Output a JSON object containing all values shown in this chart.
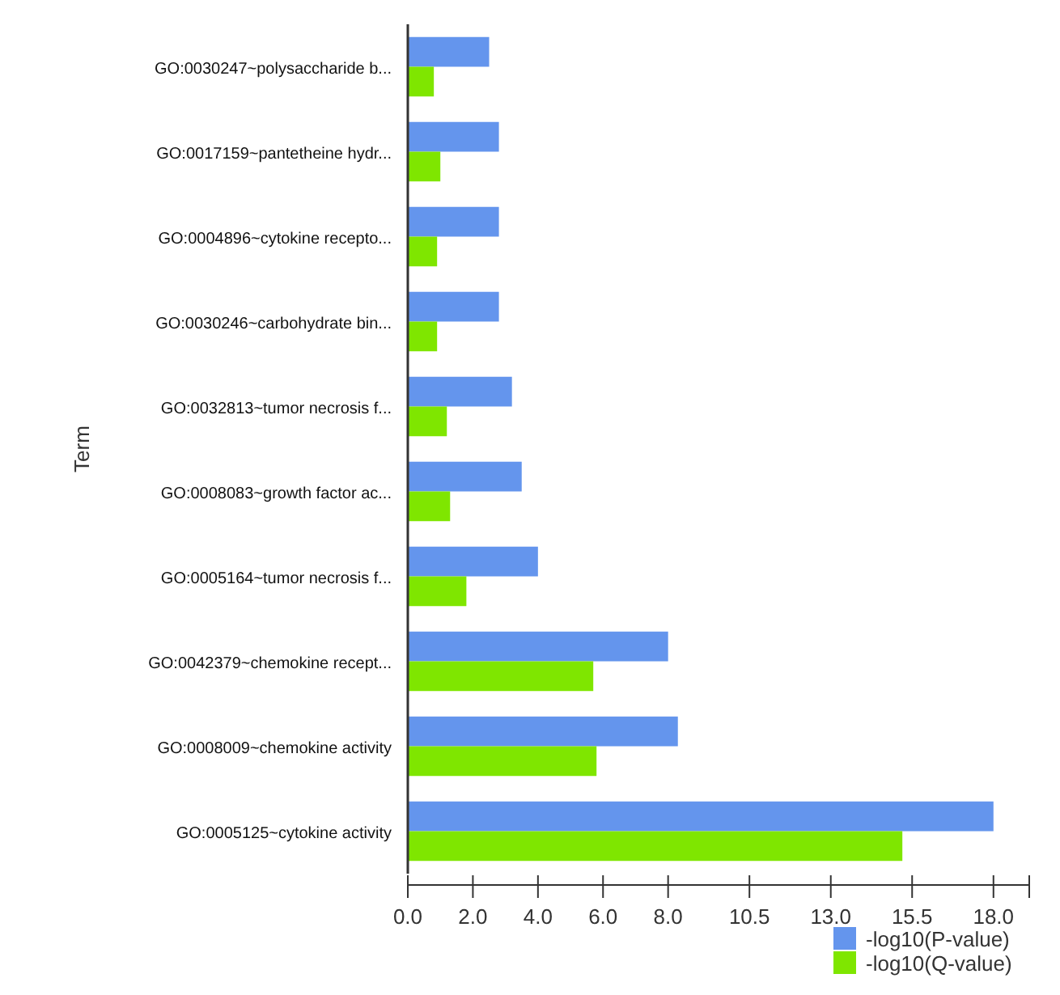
{
  "chart_data": {
    "type": "bar",
    "orientation": "horizontal",
    "ylabel": "Term",
    "categories": [
      "GO:0030247~polysaccharide b...",
      "GO:0017159~pantetheine hydr...",
      "GO:0004896~cytokine recepto...",
      "GO:0030246~carbohydrate bin...",
      "GO:0032813~tumor necrosis f...",
      "GO:0008083~growth factor ac...",
      "GO:0005164~tumor necrosis f...",
      "GO:0042379~chemokine recept...",
      "GO:0008009~chemokine activity",
      "GO:0005125~cytokine activity"
    ],
    "series": [
      {
        "name": "-log10(P-value)",
        "color": "#6495ed",
        "values": [
          2.5,
          2.8,
          2.8,
          2.8,
          3.2,
          3.5,
          4.0,
          8.0,
          8.3,
          18.0
        ]
      },
      {
        "name": "-log10(Q-value)",
        "color": "#7fe600",
        "values": [
          0.8,
          1.0,
          0.9,
          0.9,
          1.2,
          1.3,
          1.8,
          5.7,
          5.8,
          15.2
        ]
      }
    ],
    "xlim": [
      0,
      19.1
    ],
    "xticks": [
      {
        "value": 0,
        "label": "0.0"
      },
      {
        "value": 2,
        "label": "2.0"
      },
      {
        "value": 4,
        "label": "4.0"
      },
      {
        "value": 6,
        "label": "6.0"
      },
      {
        "value": 8,
        "label": "8.0"
      },
      {
        "value": 10.5,
        "label": "10.5"
      },
      {
        "value": 13,
        "label": "13.0"
      },
      {
        "value": 15.5,
        "label": "15.5"
      },
      {
        "value": 18,
        "label": "18.0"
      }
    ],
    "grid": false,
    "legend": "bottom right"
  }
}
